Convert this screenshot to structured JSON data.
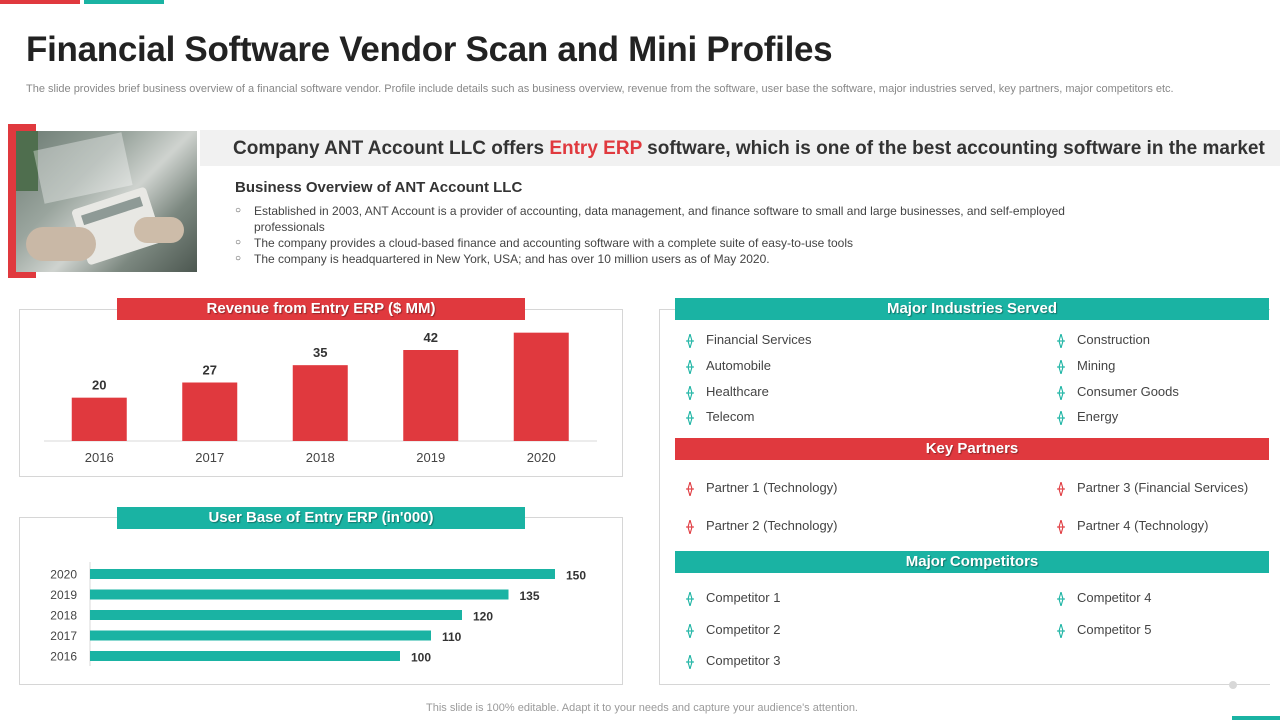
{
  "slide": {
    "title": "Financial Software Vendor Scan and Mini Profiles",
    "subtitle": "The slide provides brief business overview of a financial software vendor. Profile include details such as business overview, revenue from the software, user base the software, major industries served, key partners, major competitors etc.",
    "footer": "This slide is 100% editable. Adapt it to your needs and capture your audience's attention."
  },
  "headline": {
    "prefix": "Company ANT Account LLC offers ",
    "highlight": "Entry ERP",
    "suffix": " software, which is one of the best accounting software in the market"
  },
  "overview": {
    "heading": "Business Overview of ANT Account LLC",
    "bullets": [
      "Established in 2003, ANT Account is a provider  of accounting, data management,  and finance  software to small and large businesses, and self-employed  professionals",
      "The company provides  a cloud-based finance and accounting software  with a complete suite of easy-to-use tools",
      "The company is headquartered  in New York, USA; and has over  10 million users as of May 2020."
    ]
  },
  "sections": {
    "industries_title": "Major Industries Served",
    "partners_title": "Key Partners",
    "competitors_title": "Major Competitors"
  },
  "industries": [
    "Financial Services",
    "Automobile",
    "Healthcare",
    "Telecom",
    "Construction",
    "Mining",
    "Consumer Goods",
    "Energy"
  ],
  "partners": [
    "Partner 1 (Technology)",
    "Partner 2 (Technology)",
    "Partner 3 (Financial Services)",
    "Partner 4 (Technology)"
  ],
  "competitors": [
    "Competitor 1",
    "Competitor 2",
    "Competitor 3",
    "Competitor 4",
    "Competitor 5"
  ],
  "colors": {
    "red": "#e0393e",
    "teal": "#1ab3a3",
    "text": "#333333"
  },
  "chart_data": [
    {
      "type": "bar",
      "title": "Revenue from Entry ERP ($ MM)",
      "categories": [
        "2016",
        "2017",
        "2018",
        "2019",
        "2020"
      ],
      "values": [
        20,
        27,
        35,
        42,
        50
      ],
      "ylim": [
        0,
        60
      ],
      "grid": false,
      "color": "#e0393e"
    },
    {
      "type": "bar",
      "orientation": "horizontal",
      "title": "User Base of Entry ERP (in'000)",
      "categories": [
        "2020",
        "2019",
        "2018",
        "2017",
        "2016"
      ],
      "values": [
        150,
        135,
        120,
        110,
        100
      ],
      "xlim": [
        0,
        180
      ],
      "grid": false,
      "color": "#1ab3a3"
    }
  ]
}
